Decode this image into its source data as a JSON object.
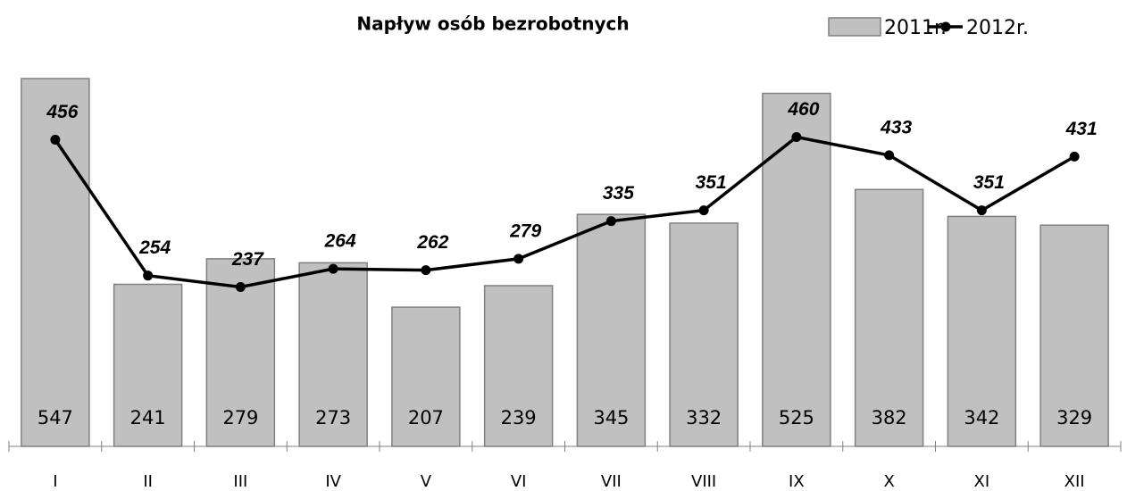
{
  "chart_data": {
    "type": "bar",
    "title": "Napływ osób bezrobotnych",
    "categories": [
      "I",
      "II",
      "III",
      "IV",
      "V",
      "VI",
      "VII",
      "VIII",
      "IX",
      "X",
      "XI",
      "XII"
    ],
    "series": [
      {
        "name": "2011r.",
        "type": "bar",
        "color": "#c0c0c0",
        "values": [
          547,
          241,
          279,
          273,
          207,
          239,
          345,
          332,
          525,
          382,
          342,
          329
        ]
      },
      {
        "name": "2012r.",
        "type": "line",
        "color": "#000000",
        "values": [
          456,
          254,
          237,
          264,
          262,
          279,
          335,
          351,
          460,
          433,
          351,
          431
        ]
      }
    ],
    "legend": "top-right"
  }
}
